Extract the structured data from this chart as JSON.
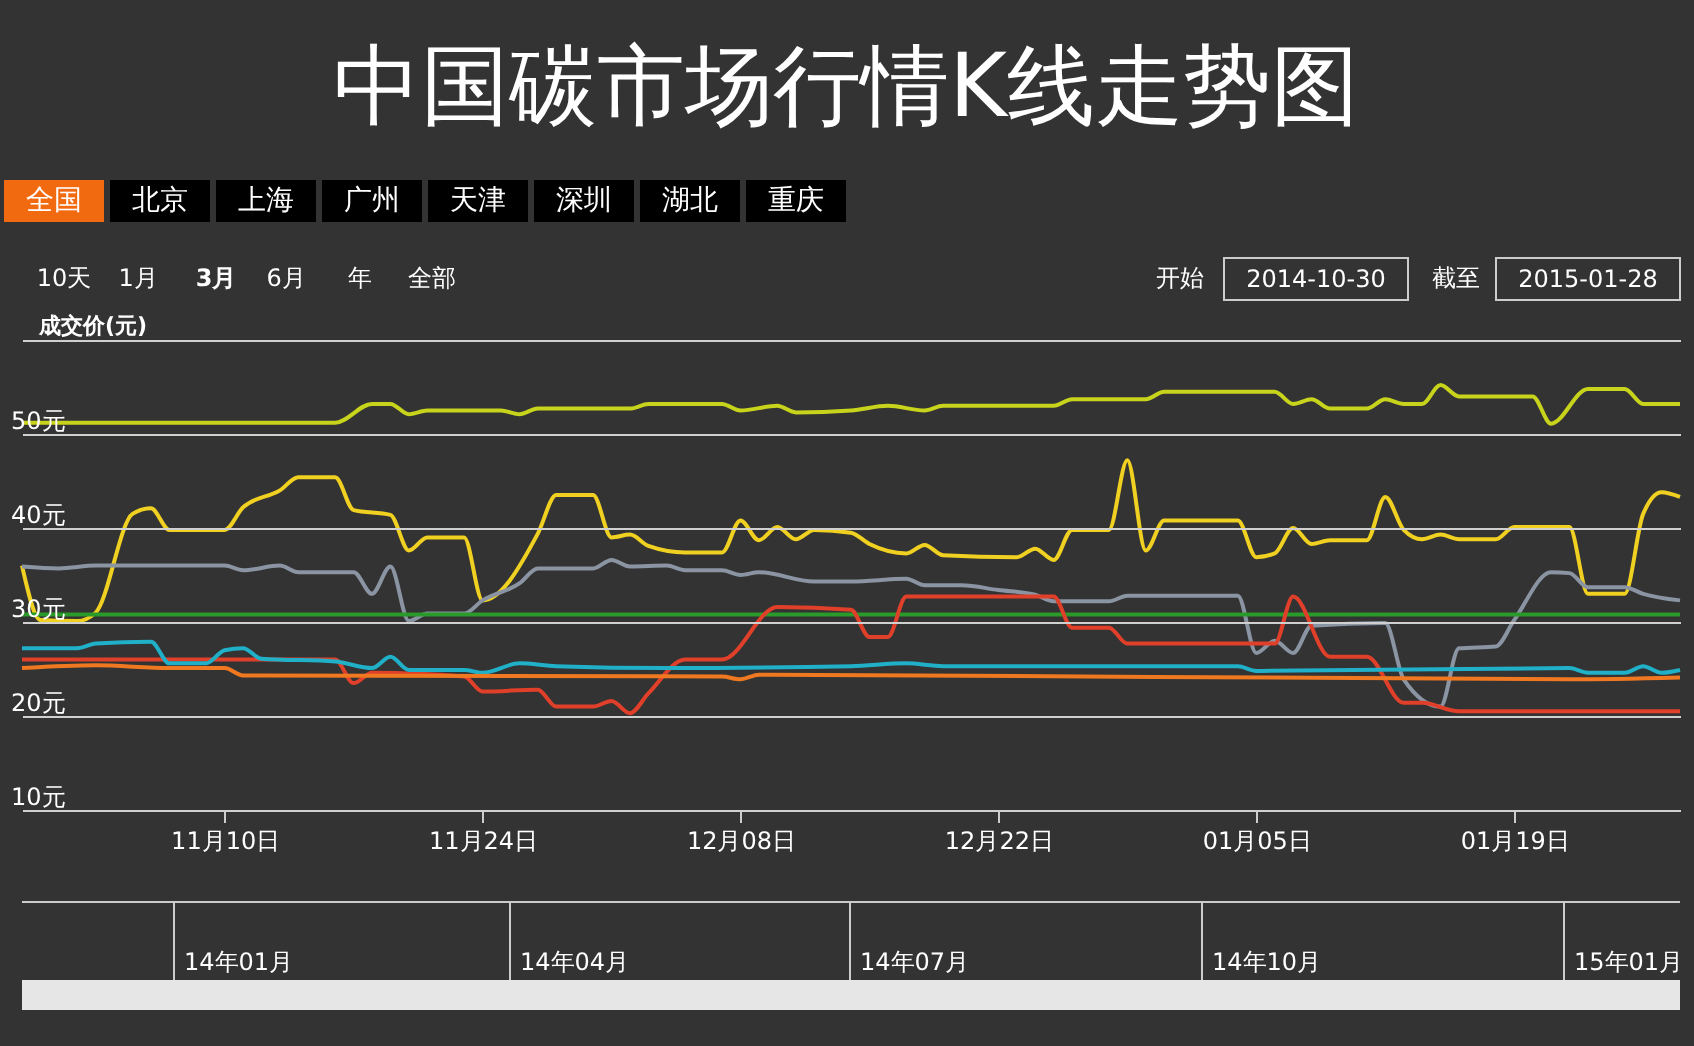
{
  "chart_data": {
    "type": "line",
    "title": "中国碳市场行情K线走势图",
    "ylabel": "成交价(元)",
    "xlim": [
      "2014-10-30",
      "2015-01-28"
    ],
    "xticks": [
      {
        "value": "2014-11-10",
        "label": "11月10日"
      },
      {
        "value": "2014-11-24",
        "label": "11月24日"
      },
      {
        "value": "2014-12-08",
        "label": "12月08日"
      },
      {
        "value": "2014-12-22",
        "label": "12月22日"
      },
      {
        "value": "2015-01-05",
        "label": "01月05日"
      },
      {
        "value": "2015-01-19",
        "label": "01月19日"
      }
    ],
    "ylim": [
      10,
      60
    ],
    "yticks": [
      {
        "value": 10,
        "label": "10元"
      },
      {
        "value": 20,
        "label": "20元"
      },
      {
        "value": 30,
        "label": "30元"
      },
      {
        "value": 40,
        "label": "40元"
      },
      {
        "value": 50,
        "label": "50元"
      },
      {
        "value": 60,
        "label": null
      }
    ],
    "grid": "y",
    "line_style": "solid",
    "annotations": [
      "全国",
      "北京",
      "上海",
      "广州",
      "天津",
      "深圳",
      "湖北",
      "重庆",
      "10天",
      "1月",
      "3月",
      "6月",
      "年",
      "全部",
      "开始",
      "2014-10-30",
      "截至",
      "2015-01-28",
      "14年01月",
      "14年04月",
      "14年07月",
      "14年10月",
      "15年01月"
    ],
    "series": [
      {
        "color": "#c8d41c",
        "x": [
          "2014-10-30",
          "2014-11-16",
          "2014-11-18",
          "2014-11-19",
          "2014-11-20",
          "2014-11-21",
          "2014-11-25",
          "2014-11-26",
          "2014-11-27",
          "2014-12-02",
          "2014-12-03",
          "2014-12-07",
          "2014-12-08",
          "2014-12-10",
          "2014-12-11",
          "2014-12-14",
          "2014-12-16",
          "2014-12-18",
          "2014-12-19",
          "2014-12-25",
          "2014-12-26",
          "2014-12-30",
          "2014-12-31",
          "2015-01-06",
          "2015-01-07",
          "2015-01-08",
          "2015-01-09",
          "2015-01-11",
          "2015-01-12",
          "2015-01-13",
          "2015-01-14",
          "2015-01-15",
          "2015-01-16",
          "2015-01-20",
          "2015-01-21",
          "2015-01-23",
          "2015-01-25",
          "2015-01-26",
          "2015-01-28"
        ],
        "values": [
          51.2,
          51.2,
          53.2,
          53.2,
          52.1,
          52.5,
          52.5,
          52.1,
          52.7,
          52.7,
          53.2,
          53.2,
          52.5,
          53.0,
          52.3,
          52.5,
          53.0,
          52.5,
          53.0,
          53.0,
          53.7,
          53.7,
          54.5,
          54.5,
          53.2,
          53.7,
          52.7,
          52.7,
          53.7,
          53.2,
          53.2,
          55.2,
          54.0,
          54.0,
          51.1,
          54.8,
          54.8,
          53.2,
          53.2
        ]
      },
      {
        "color": "#f0d020",
        "x": [
          "2014-10-30",
          "2014-10-31",
          "2014-11-02",
          "2014-11-03",
          "2014-11-05",
          "2014-11-06",
          "2014-11-07",
          "2014-11-10",
          "2014-11-11",
          "2014-11-13",
          "2014-11-14",
          "2014-11-16",
          "2014-11-17",
          "2014-11-19",
          "2014-11-20",
          "2014-11-21",
          "2014-11-23",
          "2014-11-24",
          "2014-11-27",
          "2014-11-28",
          "2014-11-30",
          "2014-12-01",
          "2014-12-02",
          "2014-12-03",
          "2014-12-05",
          "2014-12-07",
          "2014-12-08",
          "2014-12-09",
          "2014-12-10",
          "2014-12-11",
          "2014-12-12",
          "2014-12-14",
          "2014-12-15",
          "2014-12-17",
          "2014-12-18",
          "2014-12-19",
          "2014-12-23",
          "2014-12-24",
          "2014-12-25",
          "2014-12-26",
          "2014-12-28",
          "2014-12-29",
          "2014-12-30",
          "2014-12-31",
          "2015-01-04",
          "2015-01-05",
          "2015-01-06",
          "2015-01-07",
          "2015-01-08",
          "2015-01-09",
          "2015-01-11",
          "2015-01-12",
          "2015-01-13",
          "2015-01-14",
          "2015-01-15",
          "2015-01-16",
          "2015-01-18",
          "2015-01-19",
          "2015-01-22",
          "2015-01-23",
          "2015-01-25",
          "2015-01-26",
          "2015-01-27",
          "2015-01-28"
        ],
        "values": [
          36.0,
          30.2,
          30.1,
          31.0,
          41.5,
          42.1,
          39.8,
          39.8,
          42.2,
          44.0,
          45.4,
          45.4,
          41.9,
          41.4,
          37.6,
          39.0,
          39.0,
          32.3,
          39.4,
          43.5,
          43.5,
          39.0,
          39.3,
          38.1,
          37.4,
          37.4,
          40.8,
          38.7,
          40.1,
          38.8,
          39.8,
          39.5,
          38.3,
          37.3,
          38.2,
          37.1,
          36.9,
          37.8,
          36.6,
          39.8,
          39.8,
          47.2,
          37.6,
          40.8,
          40.8,
          36.9,
          37.3,
          40.0,
          38.3,
          38.7,
          38.7,
          43.3,
          39.8,
          38.8,
          39.3,
          38.8,
          38.8,
          40.1,
          40.1,
          33.0,
          33.0,
          41.5,
          43.8,
          43.3
        ]
      },
      {
        "color": "#8a94a2",
        "x": [
          "2014-10-30",
          "2014-11-01",
          "2014-11-03",
          "2014-11-10",
          "2014-11-11",
          "2014-11-13",
          "2014-11-14",
          "2014-11-17",
          "2014-11-18",
          "2014-11-19",
          "2014-11-20",
          "2014-11-21",
          "2014-11-23",
          "2014-11-24",
          "2014-11-26",
          "2014-11-27",
          "2014-11-30",
          "2014-12-01",
          "2014-12-02",
          "2014-12-04",
          "2014-12-05",
          "2014-12-07",
          "2014-12-08",
          "2014-12-09",
          "2014-12-12",
          "2014-12-14",
          "2014-12-17",
          "2014-12-18",
          "2014-12-20",
          "2014-12-22",
          "2014-12-24",
          "2014-12-25",
          "2014-12-28",
          "2014-12-29",
          "2015-01-04",
          "2015-01-05",
          "2015-01-06",
          "2015-01-07",
          "2015-01-08",
          "2015-01-12",
          "2015-01-13",
          "2015-01-15",
          "2015-01-16",
          "2015-01-18",
          "2015-01-19",
          "2015-01-21",
          "2015-01-22",
          "2015-01-23",
          "2015-01-25",
          "2015-01-26",
          "2015-01-28"
        ],
        "values": [
          35.9,
          35.7,
          36.0,
          36.0,
          35.5,
          36.0,
          35.3,
          35.3,
          33.0,
          35.9,
          30.1,
          30.9,
          30.9,
          32.3,
          34.1,
          35.7,
          35.7,
          36.6,
          35.9,
          36.0,
          35.5,
          35.5,
          35.0,
          35.3,
          34.3,
          34.3,
          34.6,
          33.9,
          33.9,
          33.4,
          32.9,
          32.2,
          32.2,
          32.8,
          32.8,
          26.7,
          28.0,
          26.7,
          29.6,
          29.9,
          23.9,
          21.0,
          27.2,
          27.4,
          30.2,
          35.3,
          35.2,
          33.7,
          33.7,
          33.0,
          32.3
        ]
      },
      {
        "color": "#2a9a2a",
        "x": [
          "2014-10-30",
          "2015-01-28"
        ],
        "values": [
          30.8,
          30.8
        ]
      },
      {
        "color": "#e0402a",
        "x": [
          "2014-10-30",
          "2014-11-16",
          "2014-11-17",
          "2014-11-18",
          "2014-11-23",
          "2014-11-24",
          "2014-11-27",
          "2014-11-28",
          "2014-11-30",
          "2014-12-01",
          "2014-12-02",
          "2014-12-03",
          "2014-12-05",
          "2014-12-07",
          "2014-12-10",
          "2014-12-14",
          "2014-12-15",
          "2014-12-16",
          "2014-12-17",
          "2014-12-25",
          "2014-12-26",
          "2014-12-28",
          "2014-12-29",
          "2015-01-06",
          "2015-01-07",
          "2015-01-09",
          "2015-01-11",
          "2015-01-13",
          "2015-01-14",
          "2015-01-16",
          "2015-01-28"
        ],
        "values": [
          26.0,
          26.0,
          23.5,
          24.6,
          24.2,
          22.6,
          22.8,
          21.0,
          21.0,
          21.6,
          20.3,
          22.4,
          26.0,
          26.0,
          31.6,
          31.3,
          28.4,
          28.4,
          32.7,
          32.7,
          29.4,
          29.4,
          27.7,
          27.7,
          32.7,
          26.3,
          26.3,
          21.4,
          21.4,
          20.5,
          20.5
        ]
      },
      {
        "color": "#20b0c8",
        "x": [
          "2014-10-30",
          "2014-11-02",
          "2014-11-03",
          "2014-11-06",
          "2014-11-07",
          "2014-11-09",
          "2014-11-10",
          "2014-11-11",
          "2014-11-12",
          "2014-11-16",
          "2014-11-18",
          "2014-11-19",
          "2014-11-20",
          "2014-11-23",
          "2014-11-24",
          "2014-11-26",
          "2014-11-28",
          "2014-12-04",
          "2014-12-14",
          "2014-12-17",
          "2014-12-19",
          "2015-01-04",
          "2015-01-05",
          "2015-01-22",
          "2015-01-23",
          "2015-01-25",
          "2015-01-26",
          "2015-01-27",
          "2015-01-28"
        ],
        "values": [
          27.2,
          27.2,
          27.7,
          27.9,
          25.6,
          25.6,
          27.0,
          27.2,
          26.1,
          25.8,
          25.1,
          26.3,
          24.9,
          24.9,
          24.6,
          25.6,
          25.3,
          25.1,
          25.3,
          25.6,
          25.3,
          25.3,
          24.8,
          25.1,
          24.6,
          24.6,
          25.3,
          24.6,
          24.9
        ]
      },
      {
        "color": "#f07820",
        "x": [
          "2014-10-30",
          "2014-11-03",
          "2014-11-07",
          "2014-11-10",
          "2014-11-11",
          "2014-12-07",
          "2014-12-08",
          "2014-12-09",
          "2015-01-22",
          "2015-01-28"
        ],
        "values": [
          25.1,
          25.4,
          25.1,
          25.1,
          24.3,
          24.2,
          23.9,
          24.4,
          23.9,
          24.1
        ]
      }
    ]
  }
}
